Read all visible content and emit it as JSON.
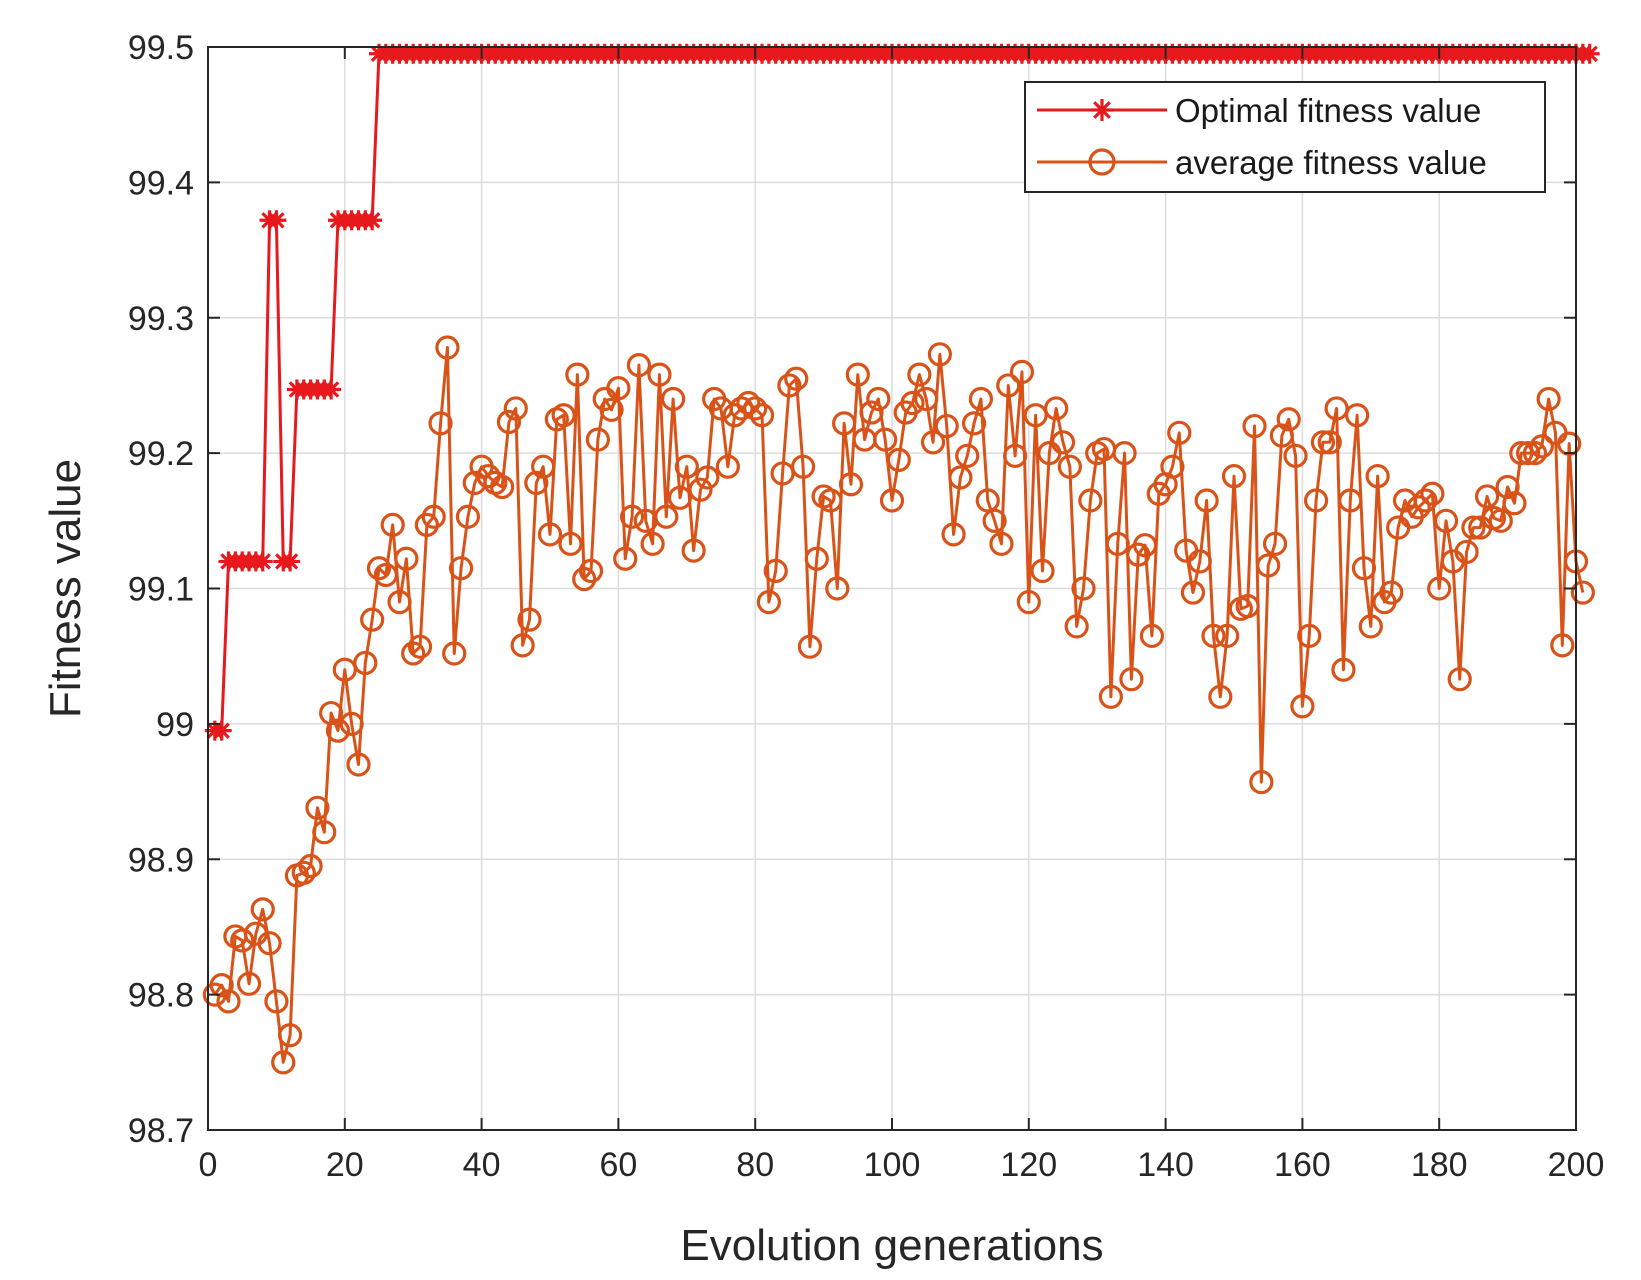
{
  "chart_data": {
    "type": "line",
    "title": "",
    "xlabel": "Evolution generations",
    "ylabel": "Fitness value",
    "xlim": [
      0,
      200
    ],
    "ylim": [
      98.7,
      99.5
    ],
    "grid": true,
    "legend_position": "top-right",
    "x_ticks": [
      0,
      20,
      40,
      60,
      80,
      100,
      120,
      140,
      160,
      180,
      200
    ],
    "x_tick_labels": [
      "0",
      "20",
      "40",
      "60",
      "80",
      "100",
      "120",
      "140",
      "160",
      "180",
      "200"
    ],
    "y_ticks": [
      98.7,
      98.8,
      98.9,
      99,
      99.1,
      99.2,
      99.3,
      99.4,
      99.5
    ],
    "y_tick_labels": [
      "98.7",
      "98.8",
      "98.9",
      "99",
      "99.1",
      "99.2",
      "99.3",
      "99.4",
      "99.5"
    ],
    "series": [
      {
        "name": "Optimal fitness value",
        "color": "#e8191c",
        "marker": "asterisk",
        "values": [
          98.995,
          98.995,
          99.12,
          99.12,
          99.12,
          99.12,
          99.12,
          99.12,
          99.372,
          99.372,
          99.12,
          99.12,
          99.247,
          99.247,
          99.247,
          99.247,
          99.247,
          99.247,
          99.372,
          99.372,
          99.372,
          99.372,
          99.372,
          99.372,
          99.495,
          99.495,
          99.495,
          99.495,
          99.495,
          99.495,
          99.495,
          99.495,
          99.495,
          99.495,
          99.495,
          99.495,
          99.495,
          99.495,
          99.495,
          99.495,
          99.495,
          99.495,
          99.495,
          99.495,
          99.495,
          99.495,
          99.495,
          99.495,
          99.495,
          99.495,
          99.495,
          99.495,
          99.495,
          99.495,
          99.495,
          99.495,
          99.495,
          99.495,
          99.495,
          99.495,
          99.495,
          99.495,
          99.495,
          99.495,
          99.495,
          99.495,
          99.495,
          99.495,
          99.495,
          99.495,
          99.495,
          99.495,
          99.495,
          99.495,
          99.495,
          99.495,
          99.495,
          99.495,
          99.495,
          99.495,
          99.495,
          99.495,
          99.495,
          99.495,
          99.495,
          99.495,
          99.495,
          99.495,
          99.495,
          99.495,
          99.495,
          99.495,
          99.495,
          99.495,
          99.495,
          99.495,
          99.495,
          99.495,
          99.495,
          99.495,
          99.495,
          99.495,
          99.495,
          99.495,
          99.495,
          99.495,
          99.495,
          99.495,
          99.495,
          99.495,
          99.495,
          99.495,
          99.495,
          99.495,
          99.495,
          99.495,
          99.495,
          99.495,
          99.495,
          99.495,
          99.495,
          99.495,
          99.495,
          99.495,
          99.495,
          99.495,
          99.495,
          99.495,
          99.495,
          99.495,
          99.495,
          99.495,
          99.495,
          99.495,
          99.495,
          99.495,
          99.495,
          99.495,
          99.495,
          99.495,
          99.495,
          99.495,
          99.495,
          99.495,
          99.495,
          99.495,
          99.495,
          99.495,
          99.495,
          99.495,
          99.495,
          99.495,
          99.495,
          99.495,
          99.495,
          99.495,
          99.495,
          99.495,
          99.495,
          99.495,
          99.495,
          99.495,
          99.495,
          99.495,
          99.495,
          99.495,
          99.495,
          99.495,
          99.495,
          99.495,
          99.495,
          99.495,
          99.495,
          99.495,
          99.495,
          99.495,
          99.495,
          99.495,
          99.495,
          99.495,
          99.495,
          99.495,
          99.495,
          99.495,
          99.495,
          99.495,
          99.495,
          99.495,
          99.495,
          99.495,
          99.495,
          99.495,
          99.495,
          99.495,
          99.495,
          99.495,
          99.495,
          99.495,
          99.495,
          99.495,
          99.495,
          99.495
        ]
      },
      {
        "name": "average fitness value",
        "color": "#d95319",
        "marker": "circle",
        "values": [
          98.8,
          98.807,
          98.795,
          98.843,
          98.84,
          98.808,
          98.845,
          98.863,
          98.838,
          98.795,
          98.75,
          98.77,
          98.888,
          98.89,
          98.895,
          98.938,
          98.92,
          99.008,
          98.995,
          99.04,
          99.0,
          98.97,
          99.045,
          99.077,
          99.115,
          99.11,
          99.147,
          99.09,
          99.122,
          99.052,
          99.057,
          99.147,
          99.153,
          99.222,
          99.278,
          99.052,
          99.115,
          99.153,
          99.178,
          99.19,
          99.183,
          99.178,
          99.175,
          99.223,
          99.233,
          99.058,
          99.077,
          99.178,
          99.19,
          99.14,
          99.225,
          99.228,
          99.133,
          99.258,
          99.107,
          99.113,
          99.21,
          99.24,
          99.232,
          99.248,
          99.122,
          99.153,
          99.265,
          99.15,
          99.133,
          99.258,
          99.153,
          99.24,
          99.167,
          99.19,
          99.128,
          99.173,
          99.182,
          99.24,
          99.233,
          99.19,
          99.228,
          99.233,
          99.237,
          99.233,
          99.228,
          99.09,
          99.113,
          99.185,
          99.25,
          99.255,
          99.19,
          99.057,
          99.122,
          99.168,
          99.165,
          99.1,
          99.222,
          99.177,
          99.258,
          99.21,
          99.23,
          99.24,
          99.21,
          99.165,
          99.195,
          99.23,
          99.237,
          99.258,
          99.24,
          99.208,
          99.273,
          99.22,
          99.14,
          99.182,
          99.198,
          99.222,
          99.24,
          99.165,
          99.15,
          99.133,
          99.25,
          99.198,
          99.26,
          99.09,
          99.228,
          99.113,
          99.2,
          99.233,
          99.208,
          99.19,
          99.072,
          99.1,
          99.165,
          99.2,
          99.203,
          99.02,
          99.133,
          99.2,
          99.033,
          99.125,
          99.132,
          99.065,
          99.17,
          99.177,
          99.19,
          99.215,
          99.128,
          99.097,
          99.12,
          99.165,
          99.065,
          99.02,
          99.065,
          99.183,
          99.085,
          99.087,
          99.22,
          98.957,
          99.117,
          99.133,
          99.213,
          99.225,
          99.198,
          99.013,
          99.065,
          99.165,
          99.208,
          99.208,
          99.233,
          99.04,
          99.165,
          99.228,
          99.115,
          99.072,
          99.183,
          99.09,
          99.097,
          99.145,
          99.165,
          99.153,
          99.16,
          99.165,
          99.17,
          99.1,
          99.15,
          99.12,
          99.033,
          99.127,
          99.145,
          99.145,
          99.168,
          99.152,
          99.15,
          99.175,
          99.163,
          99.2,
          99.2,
          99.2,
          99.205,
          99.24,
          99.215,
          99.058,
          99.207,
          99.12,
          99.097
        ]
      }
    ]
  }
}
